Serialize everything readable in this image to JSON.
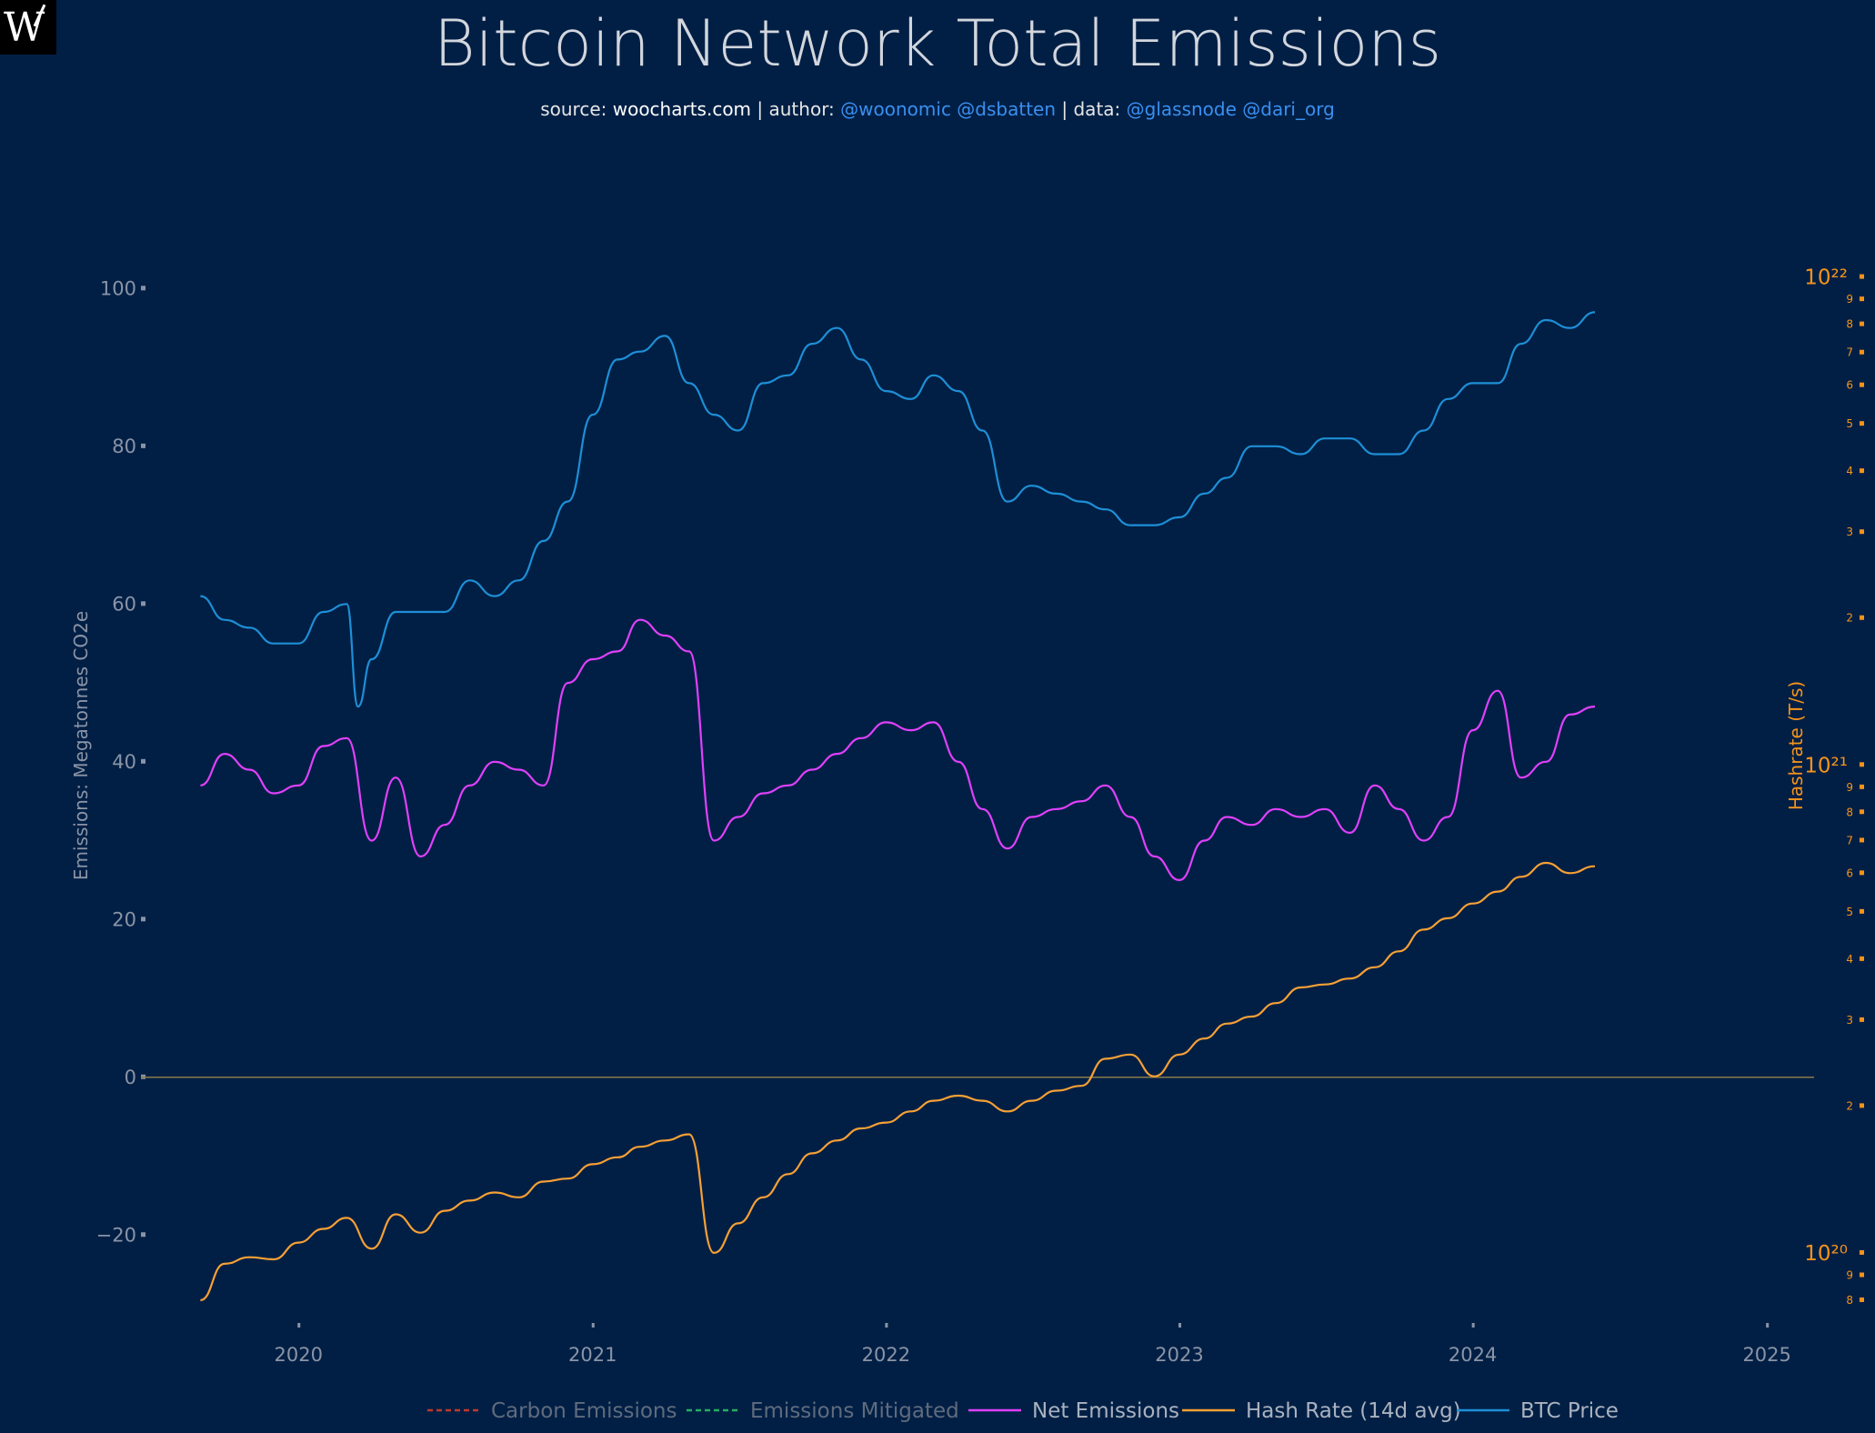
{
  "logo": {
    "letter": "W"
  },
  "title": "Bitcoin Network Total Emissions",
  "subtitle": {
    "source_label": "source:",
    "source_site": "woocharts.com",
    "author_label": "| author:",
    "authors": "@woonomic @dsbatten",
    "data_label": "| data:",
    "data_sources": "@glassnode @dari_org"
  },
  "colors": {
    "background": "#011f45",
    "carbon": "#c0392b",
    "mitigated": "#27ae60",
    "net": "#e040fb",
    "hash": "#f7a035",
    "btc": "#1e8fd6",
    "zero_line": "#8a7a4a"
  },
  "chart_data": {
    "type": "line",
    "title": "Bitcoin Network Total Emissions",
    "x_axis": {
      "ticks": [
        "2020",
        "2021",
        "2022",
        "2023",
        "2024",
        "2025"
      ],
      "range": [
        "2019-06-19",
        "2025-02-06"
      ]
    },
    "y_axis_left": {
      "label": "Emissions: Megatonnes CO2e",
      "ticks": [
        100,
        80,
        60,
        40,
        20,
        0,
        -20
      ],
      "range": [
        -30,
        102
      ]
    },
    "y_axis_right": {
      "label": "Hashrate (T/s)",
      "scale": "log",
      "major_ticks": [
        "10²²",
        "10²¹",
        "10²⁰"
      ],
      "minor_ticks": [
        "9",
        "8",
        "7",
        "6",
        "5",
        "4",
        "3",
        "2",
        "9",
        "8",
        "7",
        "6",
        "5",
        "4",
        "3",
        "2",
        "9",
        "8"
      ],
      "range": [
        7.5e+19,
        1.02e+22
      ]
    },
    "legend": {
      "placement": "bottom",
      "items": [
        "Carbon Emissions",
        "Emissions Mitigated",
        "Net Emissions",
        "Hash Rate (14d avg)",
        "BTC Price"
      ]
    },
    "series": [
      {
        "name": "BTC Price",
        "axis": "left",
        "x": [
          "2019-09-01",
          "2019-10-01",
          "2019-11-01",
          "2019-12-01",
          "2020-01-01",
          "2020-02-01",
          "2020-03-01",
          "2020-03-15",
          "2020-04-01",
          "2020-05-01",
          "2020-06-01",
          "2020-07-01",
          "2020-08-01",
          "2020-09-01",
          "2020-10-01",
          "2020-11-01",
          "2020-12-01",
          "2021-01-01",
          "2021-02-01",
          "2021-03-01",
          "2021-04-01",
          "2021-05-01",
          "2021-06-01",
          "2021-07-01",
          "2021-08-01",
          "2021-09-01",
          "2021-10-01",
          "2021-11-01",
          "2021-12-01",
          "2022-01-01",
          "2022-02-01",
          "2022-03-01",
          "2022-04-01",
          "2022-05-01",
          "2022-06-01",
          "2022-07-01",
          "2022-08-01",
          "2022-09-01",
          "2022-10-01",
          "2022-11-01",
          "2022-12-01",
          "2023-01-01",
          "2023-02-01",
          "2023-03-01",
          "2023-04-01",
          "2023-05-01",
          "2023-06-01",
          "2023-07-01",
          "2023-08-01",
          "2023-09-01",
          "2023-10-01",
          "2023-11-01",
          "2023-12-01",
          "2024-01-01",
          "2024-02-01",
          "2024-03-01",
          "2024-04-01",
          "2024-05-01",
          "2024-06-01"
        ],
        "values": [
          61,
          58,
          57,
          55,
          55,
          59,
          60,
          47,
          53,
          59,
          59,
          59,
          63,
          61,
          63,
          68,
          73,
          84,
          91,
          92,
          94,
          88,
          84,
          82,
          88,
          89,
          93,
          95,
          91,
          87,
          86,
          89,
          87,
          82,
          73,
          75,
          74,
          73,
          72,
          70,
          70,
          71,
          74,
          76,
          80,
          80,
          79,
          81,
          81,
          79,
          79,
          82,
          86,
          88,
          88,
          93,
          96,
          95,
          97
        ]
      },
      {
        "name": "Net Emissions",
        "axis": "left",
        "x": [
          "2019-09-01",
          "2019-10-01",
          "2019-11-01",
          "2019-12-01",
          "2020-01-01",
          "2020-02-01",
          "2020-03-01",
          "2020-04-01",
          "2020-05-01",
          "2020-06-01",
          "2020-07-01",
          "2020-08-01",
          "2020-09-01",
          "2020-10-01",
          "2020-11-01",
          "2020-12-01",
          "2021-01-01",
          "2021-02-01",
          "2021-03-01",
          "2021-04-01",
          "2021-05-01",
          "2021-06-01",
          "2021-07-01",
          "2021-08-01",
          "2021-09-01",
          "2021-10-01",
          "2021-11-01",
          "2021-12-01",
          "2022-01-01",
          "2022-02-01",
          "2022-03-01",
          "2022-04-01",
          "2022-05-01",
          "2022-06-01",
          "2022-07-01",
          "2022-08-01",
          "2022-09-01",
          "2022-10-01",
          "2022-11-01",
          "2022-12-01",
          "2023-01-01",
          "2023-02-01",
          "2023-03-01",
          "2023-04-01",
          "2023-05-01",
          "2023-06-01",
          "2023-07-01",
          "2023-08-01",
          "2023-09-01",
          "2023-10-01",
          "2023-11-01",
          "2023-12-01",
          "2024-01-01",
          "2024-02-01",
          "2024-03-01",
          "2024-04-01",
          "2024-05-01",
          "2024-06-01"
        ],
        "values": [
          37,
          41,
          39,
          36,
          37,
          42,
          43,
          30,
          38,
          28,
          32,
          37,
          40,
          39,
          37,
          50,
          53,
          54,
          58,
          56,
          54,
          30,
          33,
          36,
          37,
          39,
          41,
          43,
          45,
          44,
          45,
          40,
          34,
          29,
          33,
          34,
          35,
          37,
          33,
          28,
          25,
          30,
          33,
          32,
          34,
          33,
          34,
          31,
          37,
          34,
          30,
          33,
          44,
          49,
          38,
          40,
          46,
          47
        ]
      },
      {
        "name": "Hash Rate (14d avg)",
        "axis": "right",
        "x": [
          "2019-09-01",
          "2019-10-01",
          "2019-11-01",
          "2019-12-01",
          "2020-01-01",
          "2020-02-01",
          "2020-03-01",
          "2020-04-01",
          "2020-05-01",
          "2020-06-01",
          "2020-07-01",
          "2020-08-01",
          "2020-09-01",
          "2020-10-01",
          "2020-11-01",
          "2020-12-01",
          "2021-01-01",
          "2021-02-01",
          "2021-03-01",
          "2021-04-01",
          "2021-05-01",
          "2021-06-01",
          "2021-07-01",
          "2021-08-01",
          "2021-09-01",
          "2021-10-01",
          "2021-11-01",
          "2021-12-01",
          "2022-01-01",
          "2022-02-01",
          "2022-03-01",
          "2022-04-01",
          "2022-05-01",
          "2022-06-01",
          "2022-07-01",
          "2022-08-01",
          "2022-09-01",
          "2022-10-01",
          "2022-11-01",
          "2022-12-01",
          "2023-01-01",
          "2023-02-01",
          "2023-03-01",
          "2023-04-01",
          "2023-05-01",
          "2023-06-01",
          "2023-07-01",
          "2023-08-01",
          "2023-09-01",
          "2023-10-01",
          "2023-11-01",
          "2023-12-01",
          "2024-01-01",
          "2024-02-01",
          "2024-03-01",
          "2024-04-01",
          "2024-05-01",
          "2024-06-01"
        ],
        "values": [
          8e+19,
          9.5e+19,
          9.8e+19,
          9.7e+19,
          1.05e+20,
          1.12e+20,
          1.18e+20,
          1.02e+20,
          1.2e+20,
          1.1e+20,
          1.22e+20,
          1.28e+20,
          1.33e+20,
          1.3e+20,
          1.4e+20,
          1.42e+20,
          1.52e+20,
          1.57e+20,
          1.65e+20,
          1.7e+20,
          1.75e+20,
          1e+20,
          1.15e+20,
          1.3e+20,
          1.45e+20,
          1.6e+20,
          1.7e+20,
          1.8e+20,
          1.85e+20,
          1.95e+20,
          2.05e+20,
          2.1e+20,
          2.05e+20,
          1.95e+20,
          2.05e+20,
          2.15e+20,
          2.2e+20,
          2.5e+20,
          2.55e+20,
          2.3e+20,
          2.55e+20,
          2.75e+20,
          2.95e+20,
          3.05e+20,
          3.25e+20,
          3.5e+20,
          3.55e+20,
          3.65e+20,
          3.85e+20,
          4.15e+20,
          4.6e+20,
          4.85e+20,
          5.2e+20,
          5.5e+20,
          5.9e+20,
          6.3e+20,
          6e+20,
          6.2e+20
        ]
      }
    ]
  }
}
